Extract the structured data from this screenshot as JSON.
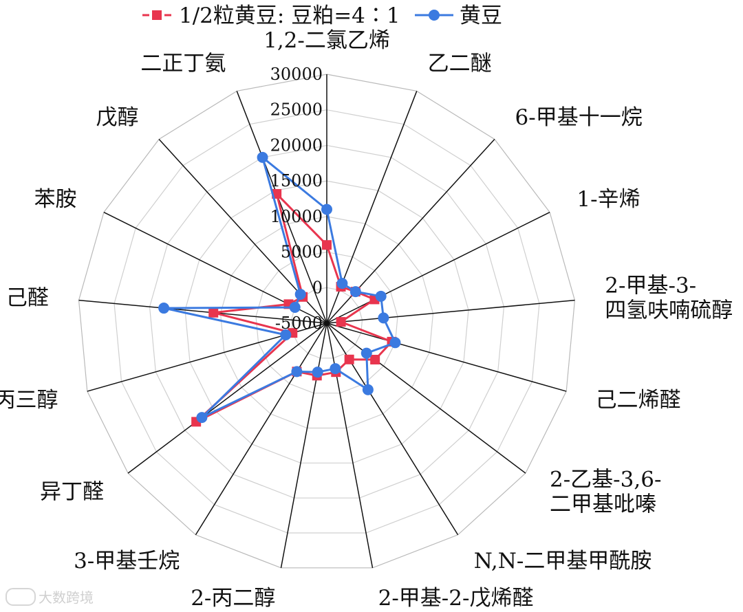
{
  "chart_data": {
    "type": "radar",
    "title": "",
    "axes": [
      "1,2-二氯乙烯",
      "乙二醚",
      "6-甲基十一烷",
      "1-辛烯",
      [
        "2-甲基-3-",
        "四氢呋喃硫醇"
      ],
      "己二烯醛",
      [
        "2-乙基-3,6-",
        "二甲基吡嗪"
      ],
      "N,N-二甲基甲酰胺",
      "2-甲基-2-戊烯醛",
      "2-丙二醇",
      "3-甲基壬烷",
      "异丁醛",
      "丙三醇",
      "己醛",
      "苯胺",
      "戊醇",
      "二正丁氨"
    ],
    "rlim": [
      -5000,
      30000
    ],
    "ticks": [
      -5000,
      0,
      5000,
      10000,
      15000,
      20000,
      25000,
      30000
    ],
    "tick_labels": [
      "-5000",
      "0",
      "5000",
      "10000",
      "15000",
      "20000",
      "25000",
      "30000"
    ],
    "grid": true,
    "legend_position": "top",
    "series": [
      {
        "name": "1/2粒黄豆: 豆粕=4∶1",
        "color": "#e8354e",
        "marker": "square",
        "values": [
          6000,
          500,
          1000,
          2500,
          -3000,
          4500,
          3500,
          1000,
          2000,
          2500,
          3000,
          18000,
          0,
          11000,
          1000,
          0,
          14500
        ]
      },
      {
        "name": "黄豆",
        "color": "#3b7ae0",
        "marker": "circle",
        "values": [
          11000,
          1000,
          1000,
          3500,
          3000,
          5000,
          2000,
          6000,
          1500,
          2000,
          3000,
          17000,
          1000,
          18000,
          0,
          500,
          20000
        ]
      }
    ]
  },
  "watermark": {
    "text": "大数跨境"
  }
}
